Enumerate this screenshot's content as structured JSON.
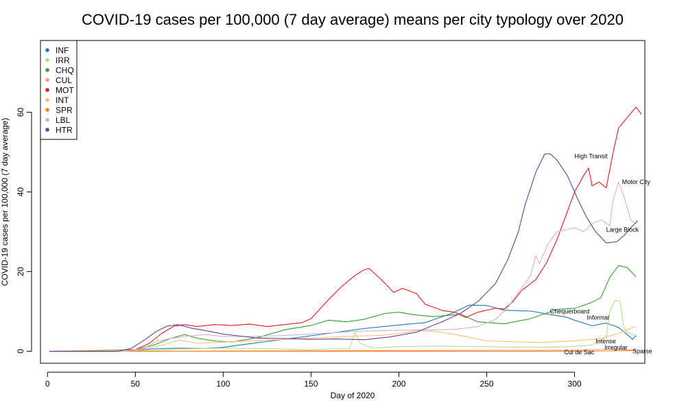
{
  "chart_data": {
    "type": "line",
    "title": "COVID-19 cases per 100,000 (7 day average) means per city typology over 2020",
    "xlabel": "Day of 2020",
    "ylabel": "COVID-19 cases per 100,000 (7 day average)",
    "xlim": [
      -4,
      340
    ],
    "ylim": [
      -3,
      78
    ],
    "xticks": [
      0,
      50,
      100,
      150,
      200,
      250,
      300
    ],
    "yticks": [
      0,
      20,
      40,
      60
    ],
    "grid": false,
    "legend_position": "top-left",
    "series": [
      {
        "name": "INF",
        "color": "#1f78b4",
        "points": [
          [
            1,
            0
          ],
          [
            40,
            0
          ],
          [
            50,
            0.2
          ],
          [
            60,
            0.6
          ],
          [
            75,
            0.8
          ],
          [
            90,
            0.7
          ],
          [
            100,
            1
          ],
          [
            120,
            2.2
          ],
          [
            140,
            3.3
          ],
          [
            160,
            4.5
          ],
          [
            180,
            5.7
          ],
          [
            200,
            6.6
          ],
          [
            215,
            7.2
          ],
          [
            230,
            9.5
          ],
          [
            240,
            11.6
          ],
          [
            250,
            11.5
          ],
          [
            260,
            10.3
          ],
          [
            275,
            10.1
          ],
          [
            285,
            9.3
          ],
          [
            295,
            8.6
          ],
          [
            300,
            7.8
          ],
          [
            310,
            6.4
          ],
          [
            318,
            7.1
          ],
          [
            325,
            6
          ],
          [
            330,
            4.2
          ],
          [
            333,
            3
          ],
          [
            335,
            4
          ]
        ]
      },
      {
        "name": "IRR",
        "color": "#b2df8a",
        "points": [
          [
            1,
            0
          ],
          [
            50,
            0
          ],
          [
            60,
            0.2
          ],
          [
            80,
            0.6
          ],
          [
            100,
            0.8
          ],
          [
            120,
            0.7
          ],
          [
            140,
            0.5
          ],
          [
            150,
            0.4
          ],
          [
            160,
            0.6
          ],
          [
            172,
            0.7
          ],
          [
            175,
            4.8
          ],
          [
            178,
            2
          ],
          [
            185,
            0.8
          ],
          [
            200,
            1.2
          ],
          [
            220,
            1.3
          ],
          [
            240,
            1.2
          ],
          [
            260,
            1.1
          ],
          [
            280,
            1
          ],
          [
            300,
            1.2
          ],
          [
            310,
            1.6
          ],
          [
            318,
            3.5
          ],
          [
            320,
            10
          ],
          [
            323,
            12.8
          ],
          [
            326,
            12.5
          ],
          [
            328,
            6
          ],
          [
            330,
            4.8
          ],
          [
            335,
            4
          ]
        ]
      },
      {
        "name": "CHQ",
        "color": "#33a02c",
        "points": [
          [
            1,
            0
          ],
          [
            50,
            0.4
          ],
          [
            60,
            1.5
          ],
          [
            70,
            3.2
          ],
          [
            78,
            4.2
          ],
          [
            85,
            3.3
          ],
          [
            95,
            2.6
          ],
          [
            105,
            2.3
          ],
          [
            120,
            3.5
          ],
          [
            135,
            5.4
          ],
          [
            150,
            6.5
          ],
          [
            160,
            7.8
          ],
          [
            170,
            7.4
          ],
          [
            180,
            8
          ],
          [
            192,
            9.5
          ],
          [
            200,
            9.8
          ],
          [
            210,
            9.1
          ],
          [
            220,
            8.7
          ],
          [
            235,
            9.3
          ],
          [
            245,
            7.4
          ],
          [
            260,
            6.9
          ],
          [
            275,
            8.2
          ],
          [
            290,
            10.5
          ],
          [
            300,
            10.8
          ],
          [
            305,
            11.5
          ],
          [
            310,
            12.3
          ],
          [
            315,
            13.5
          ],
          [
            320,
            18.5
          ],
          [
            325,
            21.5
          ],
          [
            330,
            21
          ],
          [
            335,
            18.7
          ]
        ]
      },
      {
        "name": "CUL",
        "color": "#fb9a99",
        "points": [
          [
            1,
            0
          ],
          [
            60,
            0
          ],
          [
            100,
            0.1
          ],
          [
            150,
            0.15
          ],
          [
            200,
            0.2
          ],
          [
            250,
            0.25
          ],
          [
            300,
            0.3
          ],
          [
            320,
            0.5
          ],
          [
            335,
            0.3
          ]
        ]
      },
      {
        "name": "MOT",
        "color": "#e31a1c",
        "points": [
          [
            1,
            0
          ],
          [
            40,
            0
          ],
          [
            50,
            0.4
          ],
          [
            58,
            2
          ],
          [
            65,
            4.5
          ],
          [
            72,
            6.3
          ],
          [
            78,
            6.7
          ],
          [
            85,
            6.2
          ],
          [
            95,
            6.7
          ],
          [
            105,
            6.5
          ],
          [
            115,
            6.8
          ],
          [
            125,
            6.2
          ],
          [
            135,
            6.7
          ],
          [
            145,
            7.2
          ],
          [
            150,
            8.2
          ],
          [
            160,
            13
          ],
          [
            168,
            16.5
          ],
          [
            175,
            19
          ],
          [
            180,
            20.4
          ],
          [
            183,
            20.8
          ],
          [
            190,
            18
          ],
          [
            197,
            14.8
          ],
          [
            202,
            15.8
          ],
          [
            210,
            14.5
          ],
          [
            215,
            11.8
          ],
          [
            225,
            10.2
          ],
          [
            232,
            9.8
          ],
          [
            238,
            8.5
          ],
          [
            245,
            9.8
          ],
          [
            255,
            10.8
          ],
          [
            260,
            10.6
          ],
          [
            265,
            12.5
          ],
          [
            270,
            15.3
          ],
          [
            278,
            18
          ],
          [
            284,
            22.2
          ],
          [
            290,
            28
          ],
          [
            295,
            34
          ],
          [
            300,
            40
          ],
          [
            305,
            44
          ],
          [
            308,
            46
          ],
          [
            310,
            41.5
          ],
          [
            314,
            42.5
          ],
          [
            318,
            41
          ],
          [
            322,
            50
          ],
          [
            325,
            56
          ],
          [
            330,
            58.7
          ],
          [
            335,
            61.3
          ],
          [
            338,
            59.5
          ]
        ]
      },
      {
        "name": "INT",
        "color": "#fdbf6f",
        "points": [
          [
            1,
            0
          ],
          [
            50,
            0.2
          ],
          [
            65,
            1.5
          ],
          [
            75,
            2.8
          ],
          [
            85,
            2
          ],
          [
            95,
            2.2
          ],
          [
            110,
            2.5
          ],
          [
            130,
            2.9
          ],
          [
            150,
            3.3
          ],
          [
            170,
            3.7
          ],
          [
            180,
            3.9
          ],
          [
            190,
            4
          ],
          [
            200,
            4.5
          ],
          [
            210,
            5.2
          ],
          [
            220,
            5
          ],
          [
            230,
            4.4
          ],
          [
            240,
            3.5
          ],
          [
            250,
            2.6
          ],
          [
            265,
            2.4
          ],
          [
            280,
            2.2
          ],
          [
            295,
            2.5
          ],
          [
            305,
            2.8
          ],
          [
            315,
            3.2
          ],
          [
            325,
            4.5
          ],
          [
            330,
            5.5
          ],
          [
            335,
            6.2
          ]
        ]
      },
      {
        "name": "SPR",
        "color": "#ff7f00",
        "points": [
          [
            1,
            0
          ],
          [
            100,
            0
          ],
          [
            200,
            0
          ],
          [
            280,
            0
          ],
          [
            320,
            0.1
          ],
          [
            335,
            0.2
          ]
        ]
      },
      {
        "name": "LBL",
        "color": "#cab2d6",
        "points": [
          [
            1,
            0
          ],
          [
            45,
            0
          ],
          [
            55,
            0.8
          ],
          [
            62,
            2.5
          ],
          [
            70,
            3.2
          ],
          [
            80,
            3.8
          ],
          [
            90,
            4.2
          ],
          [
            100,
            3.7
          ],
          [
            115,
            3.7
          ],
          [
            130,
            3.9
          ],
          [
            145,
            4.2
          ],
          [
            160,
            4.6
          ],
          [
            175,
            5
          ],
          [
            190,
            5.2
          ],
          [
            205,
            5.3
          ],
          [
            220,
            5.4
          ],
          [
            232,
            5.5
          ],
          [
            245,
            6.2
          ],
          [
            255,
            8
          ],
          [
            262,
            11
          ],
          [
            270,
            16
          ],
          [
            275,
            19
          ],
          [
            278,
            24
          ],
          [
            280,
            22
          ],
          [
            285,
            27
          ],
          [
            290,
            30
          ],
          [
            295,
            30.5
          ],
          [
            300,
            31
          ],
          [
            305,
            30
          ],
          [
            310,
            32
          ],
          [
            315,
            33
          ],
          [
            320,
            31.5
          ],
          [
            322,
            38
          ],
          [
            325,
            42.5
          ],
          [
            328,
            39
          ],
          [
            332,
            33
          ],
          [
            335,
            32
          ]
        ]
      },
      {
        "name": "HTR",
        "color": "#6a3d9a",
        "points": [
          [
            1,
            0
          ],
          [
            40,
            0
          ],
          [
            48,
            0.8
          ],
          [
            55,
            2.8
          ],
          [
            62,
            5
          ],
          [
            68,
            6.3
          ],
          [
            74,
            6.7
          ],
          [
            82,
            5.8
          ],
          [
            90,
            5.2
          ],
          [
            100,
            4.3
          ],
          [
            110,
            3.8
          ],
          [
            120,
            3.3
          ],
          [
            135,
            3.2
          ],
          [
            150,
            3
          ],
          [
            165,
            3.1
          ],
          [
            180,
            2.9
          ],
          [
            195,
            3.6
          ],
          [
            210,
            4.8
          ],
          [
            225,
            7.5
          ],
          [
            235,
            9.5
          ],
          [
            245,
            12.5
          ],
          [
            255,
            17
          ],
          [
            262,
            23
          ],
          [
            268,
            30
          ],
          [
            272,
            37
          ],
          [
            278,
            45
          ],
          [
            283,
            49.5
          ],
          [
            286,
            49.6
          ],
          [
            290,
            48
          ],
          [
            296,
            44
          ],
          [
            302,
            38
          ],
          [
            307,
            33.5
          ],
          [
            312,
            30
          ],
          [
            318,
            27.2
          ],
          [
            324,
            27.5
          ],
          [
            328,
            29
          ],
          [
            332,
            31
          ],
          [
            336,
            32.8
          ]
        ]
      }
    ],
    "annotations": [
      {
        "text": "High Transit",
        "x": 300,
        "y": 49
      },
      {
        "text": "Motor City",
        "x": 327,
        "y": 42.5
      },
      {
        "text": "Large Block",
        "x": 318,
        "y": 30.5
      },
      {
        "text": "Chequerboard",
        "x": 286,
        "y": 10
      },
      {
        "text": "Informal",
        "x": 307,
        "y": 8.5
      },
      {
        "text": "Intense",
        "x": 312,
        "y": 2.5
      },
      {
        "text": "Irregular",
        "x": 317,
        "y": 1
      },
      {
        "text": "Cul de Sac",
        "x": 294,
        "y": -0.2
      },
      {
        "text": "Sparse",
        "x": 333,
        "y": 0
      }
    ]
  }
}
